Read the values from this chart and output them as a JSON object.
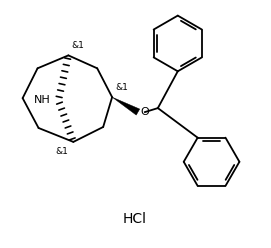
{
  "background_color": "#ffffff",
  "line_color": "#000000",
  "line_width": 1.3,
  "hcl_text": "HCl",
  "hcl_fontsize": 10,
  "label_fontsize": 6.5,
  "nh_fontsize": 8,
  "o_fontsize": 8,
  "figsize": [
    2.71,
    2.48
  ],
  "dpi": 100,
  "xlim": [
    0,
    271
  ],
  "ylim": [
    0,
    248
  ]
}
